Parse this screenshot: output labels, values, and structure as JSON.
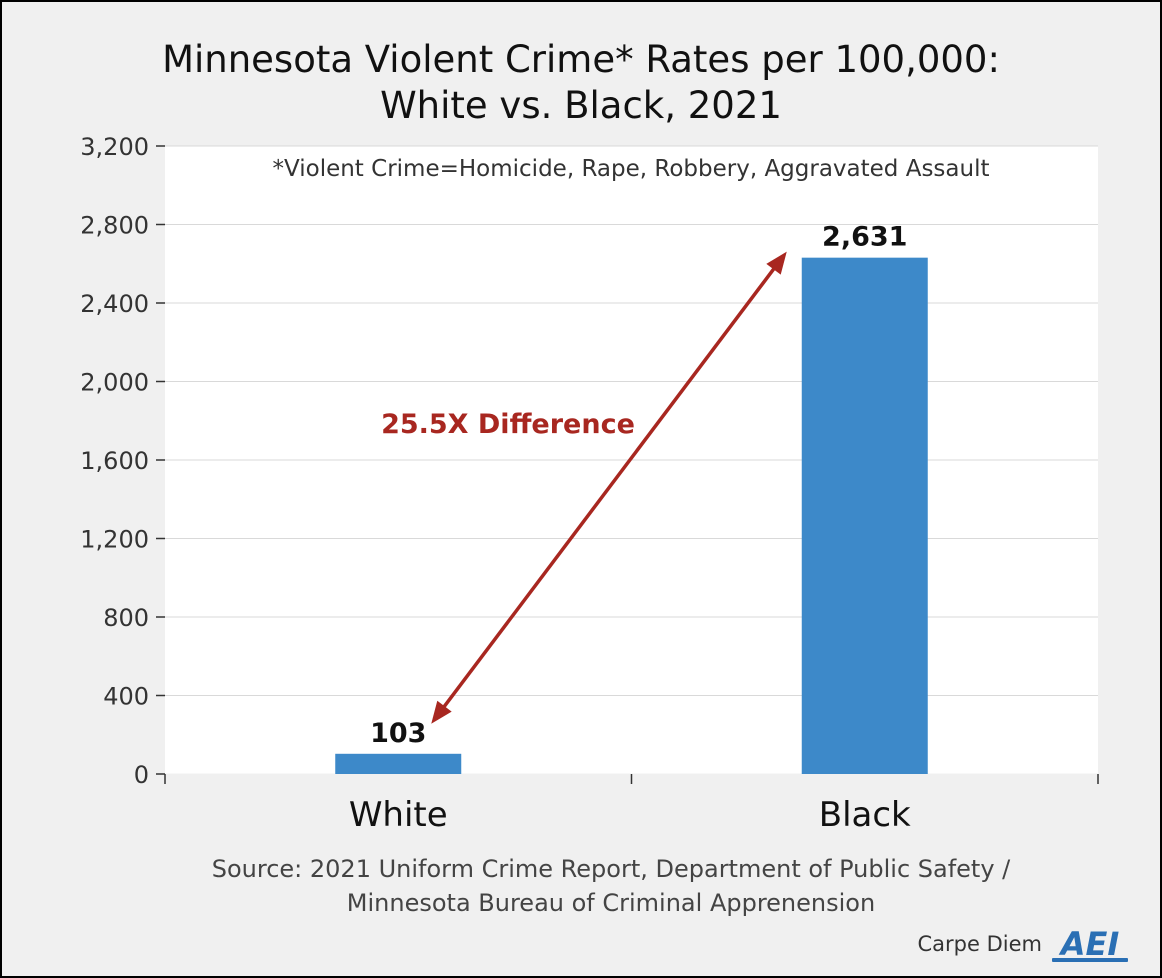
{
  "chart_data": {
    "type": "bar",
    "title_line1": "Minnesota Violent Crime* Rates per 100,000:",
    "title_line2": "White vs. Black, 2021",
    "note": "*Violent Crime=Homicide, Rape, Robbery, Aggravated Assault",
    "categories": [
      "White",
      "Black"
    ],
    "values": [
      103,
      2631
    ],
    "value_labels": [
      "103",
      "2,631"
    ],
    "ylim": [
      0,
      3200
    ],
    "yticks": [
      0,
      400,
      800,
      1200,
      1600,
      2000,
      2400,
      2800,
      3200
    ],
    "ytick_labels": [
      "0",
      "400",
      "800",
      "1,200",
      "1,600",
      "2,000",
      "2,400",
      "2,800",
      "3,200"
    ],
    "annotation": "25.5X Difference",
    "source_line1": "Source: 2021 Uniform Crime Report, Department of Public Safety /",
    "source_line2": "Minnesota Bureau of Criminal Apprenension",
    "grid": true,
    "colors": {
      "bar": "#3d89c9",
      "arrow": "#a82720",
      "annotation": "#a82720",
      "background": "#f0f0f0",
      "plot_background": "#ffffff",
      "grid": "#d9d9d9"
    }
  },
  "branding": {
    "blog_name": "Carpe Diem",
    "logo_icon": "aei-logo-icon",
    "logo_text": "AEI"
  }
}
